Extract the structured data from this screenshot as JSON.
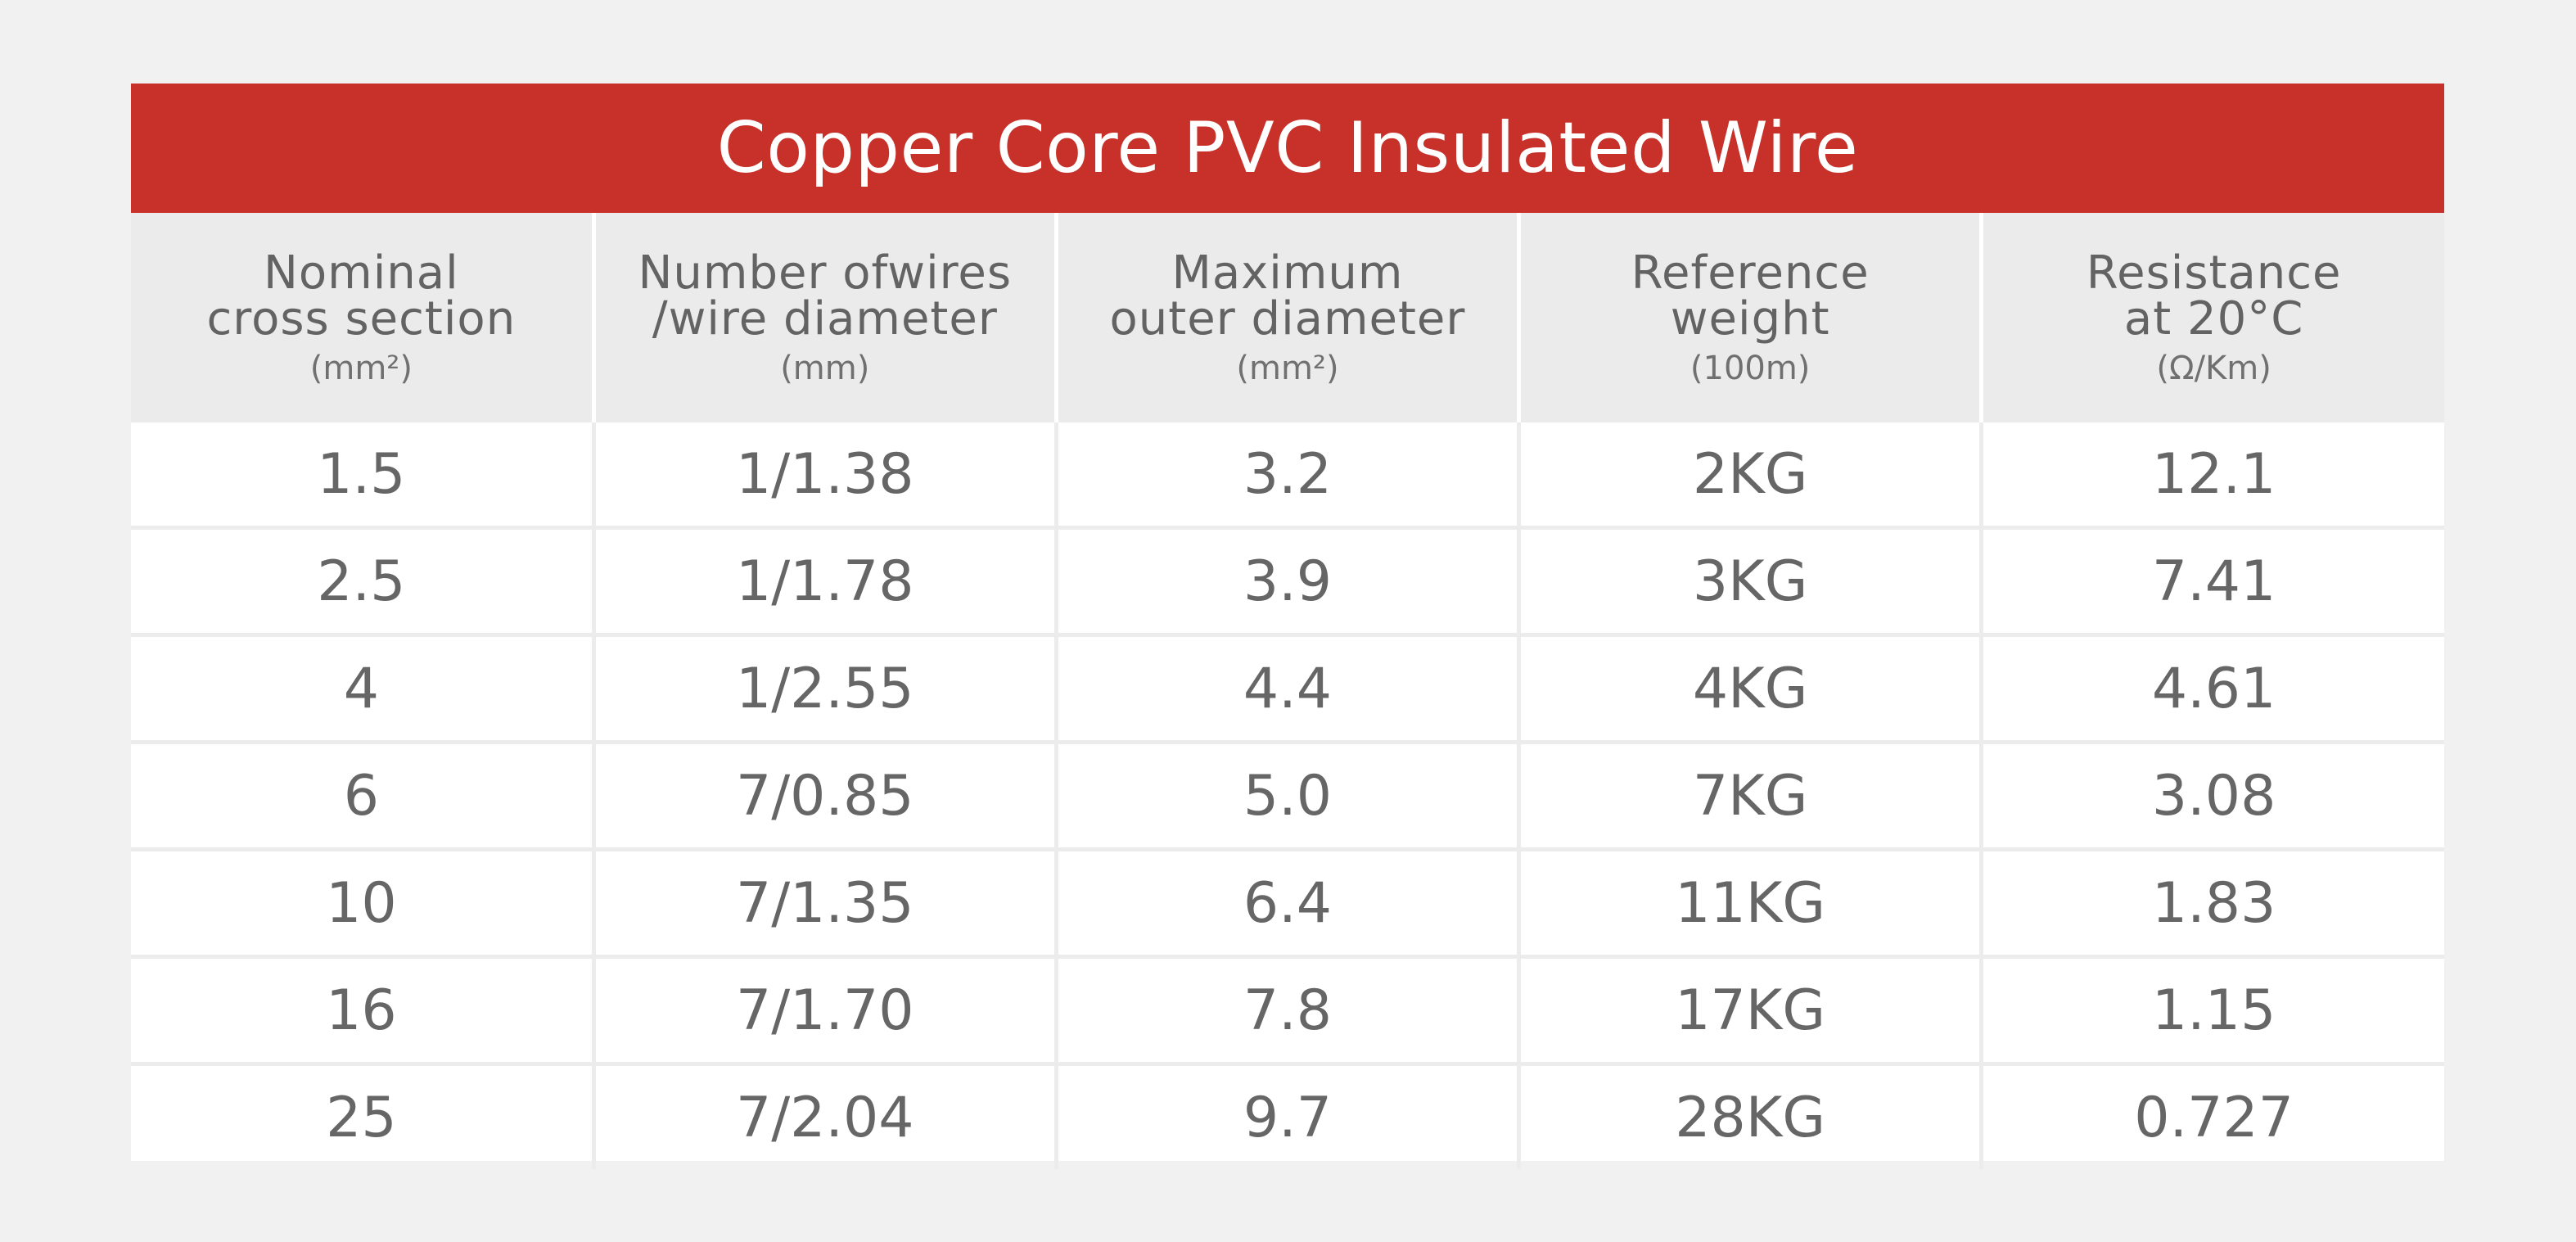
{
  "title": "Copper Core PVC Insulated Wire",
  "colors": {
    "title_bar": "#c7312a",
    "header_bg": "#ebebeb",
    "page_bg": "#f1f1f1",
    "text": "#666666"
  },
  "columns": [
    {
      "line1": "Nominal",
      "line2": "cross section",
      "unit": "(mm²)"
    },
    {
      "line1": "Number ofwires",
      "line2": "/wire diameter",
      "unit": "(mm)"
    },
    {
      "line1": "Maximum",
      "line2": "outer diameter",
      "unit": "(mm²)"
    },
    {
      "line1": "Reference",
      "line2": "weight",
      "unit": "(100m)"
    },
    {
      "line1": "Resistance",
      "line2": "at 20°C",
      "unit": "(Ω/Km)"
    }
  ],
  "rows": [
    [
      "1.5",
      "1/1.38",
      "3.2",
      "2KG",
      "12.1"
    ],
    [
      "2.5",
      "1/1.78",
      "3.9",
      "3KG",
      "7.41"
    ],
    [
      "4",
      "1/2.55",
      "4.4",
      "4KG",
      "4.61"
    ],
    [
      "6",
      "7/0.85",
      "5.0",
      "7KG",
      "3.08"
    ],
    [
      "10",
      "7/1.35",
      "6.4",
      "11KG",
      "1.83"
    ],
    [
      "16",
      "7/1.70",
      "7.8",
      "17KG",
      "1.15"
    ],
    [
      "25",
      "7/2.04",
      "9.7",
      "28KG",
      "0.727"
    ]
  ]
}
